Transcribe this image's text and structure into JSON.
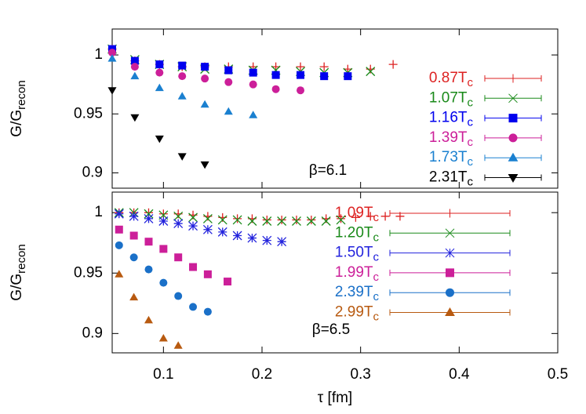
{
  "chart_data": [
    {
      "type": "scatter",
      "ylabel": "G/Grecon",
      "annotation": "β=6.1",
      "xlim": [
        0.048,
        0.5
      ],
      "xticks": [
        0.1,
        0.2,
        0.3,
        0.4,
        0.5
      ],
      "show_xtick_labels": false,
      "ylim": [
        0.887,
        1.022
      ],
      "yticks": [
        0.9,
        0.95,
        1
      ],
      "series": [
        {
          "name": "0.87Tc",
          "color": "#dd2222",
          "marker": "plus",
          "x": [
            0.048,
            0.071,
            0.096,
            0.119,
            0.142,
            0.166,
            0.191,
            0.214,
            0.239,
            0.263,
            0.287,
            0.31,
            0.333
          ],
          "values": [
            1.005,
            0.995,
            0.992,
            0.99,
            0.99,
            0.99,
            0.99,
            0.99,
            0.99,
            0.99,
            0.988,
            0.988,
            0.992
          ]
        },
        {
          "name": "1.07Tc",
          "color": "#1a8a1a",
          "marker": "cross",
          "x": [
            0.048,
            0.071,
            0.096,
            0.119,
            0.142,
            0.166,
            0.191,
            0.214,
            0.239,
            0.263,
            0.287,
            0.31
          ],
          "values": [
            1.005,
            0.996,
            0.992,
            0.99,
            0.988,
            0.988,
            0.987,
            0.987,
            0.986,
            0.985,
            0.985,
            0.986
          ]
        },
        {
          "name": "1.16Tc",
          "color": "#0000ee",
          "marker": "square",
          "x": [
            0.048,
            0.071,
            0.096,
            0.119,
            0.142,
            0.166,
            0.191,
            0.214,
            0.239,
            0.263,
            0.287
          ],
          "values": [
            1.005,
            0.995,
            0.992,
            0.991,
            0.99,
            0.987,
            0.985,
            0.983,
            0.983,
            0.982,
            0.982
          ]
        },
        {
          "name": "1.39Tc",
          "color": "#cc1f99",
          "marker": "circle",
          "x": [
            0.048,
            0.071,
            0.096,
            0.119,
            0.142,
            0.166,
            0.191,
            0.214,
            0.239
          ],
          "values": [
            1.002,
            0.99,
            0.985,
            0.982,
            0.98,
            0.977,
            0.975,
            0.971,
            0.97
          ]
        },
        {
          "name": "1.73Tc",
          "color": "#1a80d0",
          "marker": "triangle",
          "x": [
            0.048,
            0.071,
            0.096,
            0.119,
            0.142,
            0.166,
            0.191
          ],
          "values": [
            0.997,
            0.982,
            0.972,
            0.965,
            0.958,
            0.952,
            0.949
          ]
        },
        {
          "name": "2.31Tc",
          "color": "#000000",
          "marker": "triangle-down",
          "x": [
            0.048,
            0.071,
            0.096,
            0.119,
            0.142
          ],
          "values": [
            0.97,
            0.947,
            0.929,
            0.914,
            0.907
          ]
        }
      ]
    },
    {
      "type": "scatter",
      "ylabel": "G/Grecon",
      "xlabel": "τ [fm]",
      "annotation": "β=6.5",
      "xlim": [
        0.048,
        0.5
      ],
      "xticks": [
        0.1,
        0.2,
        0.3,
        0.4,
        0.5
      ],
      "show_xtick_labels": true,
      "ylim": [
        0.884,
        1.017
      ],
      "yticks": [
        0.9,
        0.95,
        1
      ],
      "series": [
        {
          "name": "1.09Tc",
          "color": "#dd2222",
          "marker": "plus",
          "x": [
            0.055,
            0.07,
            0.085,
            0.1,
            0.115,
            0.13,
            0.145,
            0.16,
            0.175,
            0.19,
            0.205,
            0.22,
            0.235,
            0.25,
            0.265,
            0.28,
            0.295,
            0.31,
            0.325,
            0.34
          ],
          "values": [
            1.0,
            1.0,
            1.0,
            0.999,
            0.999,
            0.998,
            0.997,
            0.996,
            0.995,
            0.995,
            0.994,
            0.994,
            0.994,
            0.994,
            0.995,
            0.995,
            0.996,
            0.997,
            0.997,
            0.997
          ]
        },
        {
          "name": "1.20Tc",
          "color": "#1a8a1a",
          "marker": "cross",
          "x": [
            0.055,
            0.07,
            0.085,
            0.1,
            0.115,
            0.13,
            0.145,
            0.16,
            0.175,
            0.19,
            0.205,
            0.22,
            0.235,
            0.25,
            0.265,
            0.28
          ],
          "values": [
            1.0,
            1.0,
            0.999,
            0.998,
            0.997,
            0.996,
            0.995,
            0.994,
            0.994,
            0.993,
            0.993,
            0.993,
            0.993,
            0.993,
            0.993,
            0.994
          ]
        },
        {
          "name": "1.50Tc",
          "color": "#2222dd",
          "marker": "star",
          "x": [
            0.055,
            0.07,
            0.085,
            0.1,
            0.115,
            0.13,
            0.145,
            0.16,
            0.175,
            0.19,
            0.205,
            0.22
          ],
          "values": [
            0.999,
            0.997,
            0.995,
            0.993,
            0.991,
            0.989,
            0.986,
            0.984,
            0.981,
            0.979,
            0.977,
            0.976
          ]
        },
        {
          "name": "1.99Tc",
          "color": "#cc1f99",
          "marker": "square",
          "x": [
            0.055,
            0.07,
            0.085,
            0.1,
            0.115,
            0.13,
            0.145,
            0.165
          ],
          "values": [
            0.986,
            0.981,
            0.976,
            0.97,
            0.963,
            0.955,
            0.949,
            0.943
          ]
        },
        {
          "name": "2.39Tc",
          "color": "#1a70c8",
          "marker": "circle",
          "x": [
            0.055,
            0.07,
            0.085,
            0.1,
            0.115,
            0.13,
            0.145
          ],
          "values": [
            0.973,
            0.963,
            0.953,
            0.942,
            0.931,
            0.922,
            0.918
          ]
        },
        {
          "name": "2.99Tc",
          "color": "#b85a10",
          "marker": "triangle",
          "x": [
            0.055,
            0.07,
            0.085,
            0.1,
            0.115
          ],
          "values": [
            0.949,
            0.93,
            0.911,
            0.896,
            0.89
          ]
        }
      ]
    }
  ]
}
